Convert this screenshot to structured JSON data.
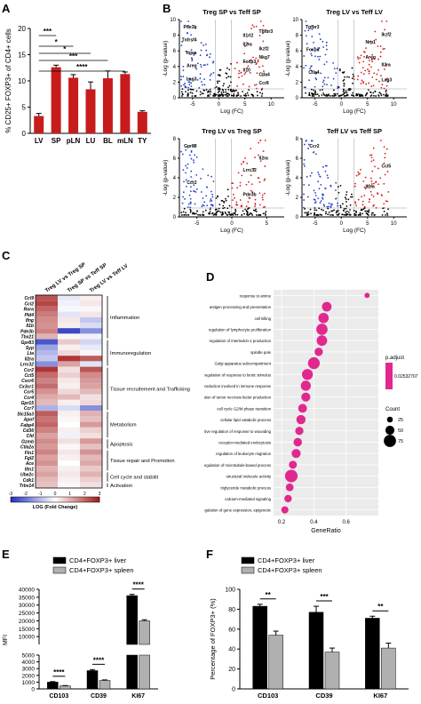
{
  "panel_labels": {
    "a": "A",
    "b": "B",
    "c": "C",
    "d": "D",
    "e": "E",
    "f": "F"
  },
  "chart_data": [
    {
      "id": "A",
      "type": "bar",
      "ylabel": "% CD25+ FOXP3+ of CD4+ cells",
      "categories": [
        "LV",
        "SP",
        "pLN",
        "LU",
        "BL",
        "mLN",
        "TY"
      ],
      "values": [
        3.3,
        12.6,
        10.6,
        8.4,
        10.5,
        11.3,
        4.1
      ],
      "errors": [
        0.5,
        0.4,
        0.6,
        1.4,
        1.4,
        0.4,
        0.2
      ],
      "ylim": [
        0,
        20
      ],
      "yticks": [
        "0",
        "5",
        "10",
        "15",
        "20"
      ],
      "significance": [
        {
          "from": "LV",
          "to": "SP",
          "label": "***"
        },
        {
          "from": "LV",
          "to": "pLN",
          "label": "*"
        },
        {
          "from": "LV",
          "to": "LU",
          "label": "*"
        },
        {
          "from": "LV",
          "to": "BL",
          "label": "***"
        },
        {
          "from": "LV",
          "to": "mLN",
          "label": "****"
        }
      ]
    },
    {
      "id": "B",
      "type": "scatter",
      "plots": [
        {
          "title": "Treg SP vs Teff SP",
          "labels": [
            "Pde3b",
            "Tgfbr3",
            "Il1rl2",
            "Tnfrsf4",
            "Il2ra",
            "Ikzf2",
            "Itgae",
            "Nkg7",
            "Foxp3",
            "Areg",
            "Il10",
            "Ctla4",
            "Lag3",
            "Ccr8"
          ],
          "xticks": [
            "-5",
            "0",
            "5",
            "10"
          ],
          "yticks": [
            "0",
            "2",
            "4",
            "6",
            "8",
            "10"
          ]
        },
        {
          "title": "Treg LV vs Teff LV",
          "labels": [
            "Tgfbr3",
            "Ikzf2",
            "Nrp1",
            "Foxp3",
            "Areg",
            "Il2ra",
            "Ctla4",
            "Lag3"
          ],
          "xticks": [
            "-5",
            "0",
            "5",
            "10"
          ],
          "yticks": [
            "0",
            "2",
            "4",
            "6",
            "8",
            "10"
          ]
        },
        {
          "title": "Treg LV vs Treg SP",
          "labels": [
            "Gpr83",
            "Il2ra",
            "Lrrc32",
            "Ccr2",
            "Pde3b"
          ],
          "xticks": [
            "-5",
            "0",
            "5"
          ],
          "yticks": [
            "0",
            "2",
            "4",
            "6",
            "8"
          ]
        },
        {
          "title": "Teff LV vs Teff SP",
          "labels": [
            "Ccr2",
            "Ccl5",
            "Il2ra"
          ],
          "xticks": [
            "-5",
            "0",
            "5",
            "10"
          ],
          "yticks": [
            "0",
            "2",
            "4",
            "6",
            "8"
          ]
        }
      ],
      "xlabel": "Log (FC)",
      "ylabel": "-Log (p-value)"
    },
    {
      "id": "C",
      "type": "heatmap",
      "columns": [
        "Treg LV vs Treg SP",
        "Treg SP vs Teff SP",
        "Treg LV vs Teff LV"
      ],
      "genes": [
        "Ccl9",
        "Ccl2",
        "Rora",
        "Pld4",
        "Ifng",
        "Il1b",
        "Pde3b",
        "Tbx21",
        "Gpr83",
        "Syp",
        "Lta",
        "Il2ra",
        "Lrrc32",
        "Ccr2",
        "Ccl5",
        "Cxcr6",
        "Cx3cr1",
        "Ccr5",
        "Ccr4",
        "Gpr15",
        "Ccr7",
        "Slc15a3",
        "Apof",
        "Fabp4",
        "Cd36",
        "Cfd",
        "Gzmb",
        "Ctla2a",
        "Fln1",
        "Fgl2",
        "Ace",
        "Itln1",
        "Ube2c",
        "Cdk1",
        "Trbv14"
      ],
      "values": [
        [
          2.2,
          -0.3,
          0.2
        ],
        [
          2.4,
          -0.2,
          0.3
        ],
        [
          2.0,
          -0.1,
          0.1
        ],
        [
          1.7,
          -0.4,
          0.3
        ],
        [
          1.5,
          0.3,
          -0.8
        ],
        [
          1.4,
          0.2,
          -0.5
        ],
        [
          1.6,
          -2.6,
          -1.6
        ],
        [
          1.0,
          0.1,
          -0.2
        ],
        [
          -2.4,
          0.7,
          -0.6
        ],
        [
          -1.3,
          0.2,
          -0.3
        ],
        [
          -1.0,
          0.5,
          0.1
        ],
        [
          -0.8,
          2.6,
          2.1
        ],
        [
          -1.6,
          1.2,
          -0.4
        ],
        [
          2.6,
          0.4,
          2.2
        ],
        [
          1.9,
          0.6,
          1.5
        ],
        [
          1.6,
          0.3,
          1.3
        ],
        [
          1.9,
          0.2,
          1.2
        ],
        [
          1.4,
          0.5,
          0.9
        ],
        [
          1.1,
          0.9,
          0.4
        ],
        [
          0.9,
          0.2,
          0.5
        ],
        [
          -1.1,
          -0.5,
          -1.6
        ],
        [
          2.1,
          0.2,
          1.0
        ],
        [
          1.8,
          0.1,
          0.8
        ],
        [
          2.0,
          0.0,
          1.3
        ],
        [
          1.6,
          0.2,
          0.6
        ],
        [
          1.2,
          -0.2,
          0.4
        ],
        [
          1.5,
          0.4,
          1.3
        ],
        [
          1.3,
          0.1,
          0.8
        ],
        [
          1.6,
          0.3,
          1.4
        ],
        [
          1.2,
          0.2,
          0.9
        ],
        [
          1.4,
          0.0,
          1.1
        ],
        [
          1.0,
          0.2,
          0.7
        ],
        [
          1.2,
          0.3,
          1.0
        ],
        [
          0.9,
          0.2,
          0.6
        ],
        [
          0.8,
          0.1,
          0.4
        ]
      ],
      "groups": [
        {
          "label": "Inflammation",
          "rows": 8
        },
        {
          "label": "Immunoregulation",
          "rows": 5
        },
        {
          "label": "Tissue recruitement and Trafficking",
          "rows": 8
        },
        {
          "label": "Metabolism",
          "rows": 5
        },
        {
          "label": "Apoptosis",
          "rows": 2
        },
        {
          "label": "Tissue repair and Promotion",
          "rows": 4
        },
        {
          "label": "Cell cycle and stabilit",
          "rows": 2
        },
        {
          "label": "Activation",
          "rows": 1
        }
      ],
      "scale_ticks": [
        "-3",
        "-2",
        "-1",
        "0",
        "1",
        "2",
        "3"
      ],
      "scale_label": "LOG (Fold Change)",
      "scale_range": [
        -3,
        3
      ],
      "colors": {
        "low": "#1f2fbf",
        "mid": "#ffffff",
        "high": "#a31818"
      }
    },
    {
      "id": "D",
      "type": "scatter",
      "xlabel": "GeneRatio",
      "xlim": [
        0.15,
        0.8
      ],
      "xticks": [
        "0.2",
        "0.4",
        "0.6"
      ],
      "terms": [
        "response to amine",
        "antigen processing and presentation",
        "cell killing",
        "regulation of lymphocyte proliferation",
        "regulation of interleukin-1 production",
        "spindle pole",
        "Golgi apparatus subcompartment",
        "regulation of response to biotic stimulus",
        "cytokine production involved in immune response",
        "regulation of tumor necrosis factor production",
        "cell cycle G2/M phase transition",
        "cellular lipid catabolic process",
        "negative regulation of response to wounding",
        "receptor-mediated endocytosis",
        "regulation of leukocyte migration",
        "regulation of microtubule-based process",
        "structural molecule activity",
        "triglyceride metabolic process",
        "calcium-mediated signaling",
        "regulation of gene expression, epigenetic"
      ],
      "x": [
        0.73,
        0.48,
        0.46,
        0.45,
        0.45,
        0.43,
        0.4,
        0.36,
        0.35,
        0.35,
        0.33,
        0.32,
        0.31,
        0.3,
        0.29,
        0.27,
        0.26,
        0.25,
        0.24,
        0.22
      ],
      "count": [
        20,
        55,
        60,
        68,
        62,
        45,
        72,
        65,
        58,
        50,
        48,
        52,
        44,
        46,
        50,
        42,
        78,
        40,
        38,
        36
      ],
      "legend": {
        "color_title": "p.adjust",
        "color_value": "0.02532707",
        "size_title": "Count",
        "sizes": [
          "25",
          "50",
          "75"
        ]
      },
      "color": "#e0288f"
    },
    {
      "id": "E",
      "type": "bar",
      "ylabel": "MFI",
      "categories": [
        "CD103",
        "CD39",
        "KI67"
      ],
      "series": [
        {
          "name": "CD4+FOXP3+ liver",
          "values": [
            1000,
            2700,
            36000
          ],
          "errors": [
            80,
            150,
            800
          ]
        },
        {
          "name": "CD4+FOXP3+ spleen",
          "values": [
            450,
            1250,
            20000
          ],
          "errors": [
            40,
            80,
            700
          ]
        }
      ],
      "significance": [
        "****",
        "****",
        "****"
      ],
      "yticks_low": [
        "0",
        "1000",
        "2000",
        "3000",
        "4000",
        "5000"
      ],
      "yticks_high": [
        "10000",
        "15000",
        "20000",
        "25000",
        "30000",
        "35000",
        "40000"
      ],
      "ylim_low": [
        0,
        5000
      ],
      "ylim_high": [
        5000,
        40000
      ],
      "colors": {
        "liver": "#000000",
        "spleen": "#b0b0b0"
      }
    },
    {
      "id": "F",
      "type": "bar",
      "ylabel": "Percentage of FOXP3+ (%)",
      "categories": [
        "CD103",
        "CD39",
        "KI67"
      ],
      "series": [
        {
          "name": "CD4+FOXP3+ liver",
          "values": [
            83,
            77,
            71
          ],
          "errors": [
            2,
            6,
            2
          ]
        },
        {
          "name": "CD4+FOXP3+ spleen",
          "values": [
            54,
            37,
            41
          ],
          "errors": [
            4,
            4,
            5
          ]
        }
      ],
      "significance": [
        "**",
        "***",
        "**"
      ],
      "ylim": [
        0,
        100
      ],
      "yticks": [
        "0",
        "20",
        "40",
        "60",
        "80",
        "100"
      ],
      "colors": {
        "liver": "#000000",
        "spleen": "#b0b0b0"
      }
    }
  ]
}
